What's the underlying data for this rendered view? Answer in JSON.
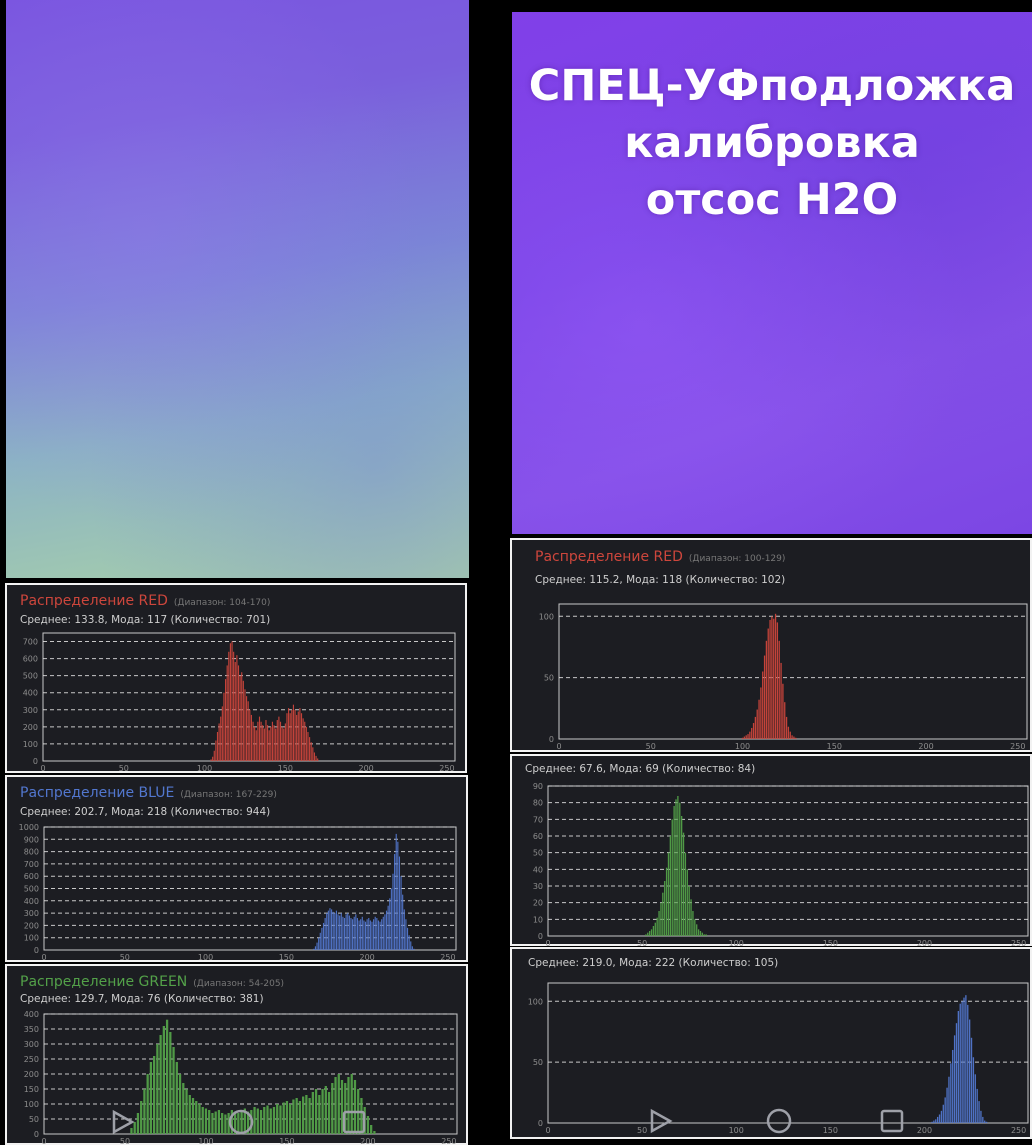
{
  "overlay_text": [
    "СПЕЦ-УФподложка",
    "калибровка",
    "отсос H2O"
  ],
  "colors": {
    "red": "#cd463c",
    "blue": "#5277cf",
    "green": "#53a149",
    "panel_bg": "#1c1d22",
    "plot_border": "#c9c9c9",
    "grid": "#e6e6e6",
    "tick_text": "#8d8d8d"
  },
  "nav_icons": [
    "back-triangle-icon",
    "home-circle-icon",
    "recents-square-icon"
  ],
  "chart_data": [
    {
      "type": "bar",
      "title": "Распределение RED",
      "range_label": "(Диапазон: 104-170)",
      "stats": "Среднее: 133.8, Мода: 117 (Количество: 701)",
      "xlim": [
        0,
        255
      ],
      "ylim": [
        0,
        750
      ],
      "xticks": [
        0,
        50,
        100,
        150,
        200,
        250
      ],
      "yticks": [
        0,
        100,
        200,
        300,
        400,
        500,
        600,
        700
      ],
      "mean_line": 133.8,
      "x": [
        104,
        105,
        106,
        107,
        108,
        109,
        110,
        111,
        112,
        113,
        114,
        115,
        116,
        117,
        118,
        119,
        120,
        121,
        122,
        123,
        124,
        125,
        126,
        127,
        128,
        129,
        130,
        131,
        132,
        133,
        134,
        135,
        136,
        137,
        138,
        139,
        140,
        141,
        142,
        143,
        144,
        145,
        146,
        147,
        148,
        149,
        150,
        151,
        152,
        153,
        154,
        155,
        156,
        157,
        158,
        159,
        160,
        161,
        162,
        163,
        164,
        165,
        166,
        167,
        168,
        169,
        170
      ],
      "values": [
        10,
        25,
        60,
        120,
        170,
        220,
        260,
        320,
        400,
        480,
        560,
        640,
        690,
        701,
        640,
        580,
        620,
        560,
        500,
        520,
        470,
        420,
        380,
        350,
        300,
        270,
        230,
        200,
        180,
        230,
        260,
        230,
        210,
        190,
        240,
        210,
        180,
        200,
        230,
        210,
        190,
        240,
        260,
        230,
        200,
        190,
        220,
        280,
        310,
        280,
        300,
        330,
        300,
        270,
        290,
        310,
        280,
        250,
        230,
        200,
        170,
        140,
        110,
        80,
        50,
        30,
        15
      ],
      "series_color": "red"
    },
    {
      "type": "bar",
      "title": "Распределение BLUE",
      "range_label": "(Диапазон: 167-229)",
      "stats": "Среднее: 202.7, Мода: 218 (Количество: 944)",
      "xlim": [
        0,
        255
      ],
      "ylim": [
        0,
        1000
      ],
      "xticks": [
        0,
        50,
        100,
        150,
        200,
        250
      ],
      "yticks": [
        0,
        100,
        200,
        300,
        400,
        500,
        600,
        700,
        800,
        900,
        1000
      ],
      "ytick_labels": [
        "0",
        "100",
        "200",
        "300",
        "400",
        "500",
        "600",
        "700",
        "800",
        "900",
        "1000"
      ],
      "x": [
        167,
        168,
        169,
        170,
        171,
        172,
        173,
        174,
        175,
        176,
        177,
        178,
        179,
        180,
        181,
        182,
        183,
        184,
        185,
        186,
        187,
        188,
        189,
        190,
        191,
        192,
        193,
        194,
        195,
        196,
        197,
        198,
        199,
        200,
        201,
        202,
        203,
        204,
        205,
        206,
        207,
        208,
        209,
        210,
        211,
        212,
        213,
        214,
        215,
        216,
        217,
        218,
        219,
        220,
        221,
        222,
        223,
        224,
        225,
        226,
        227,
        228,
        229
      ],
      "values": [
        10,
        30,
        60,
        100,
        140,
        180,
        220,
        260,
        300,
        320,
        340,
        330,
        310,
        300,
        320,
        290,
        280,
        300,
        270,
        260,
        290,
        300,
        280,
        260,
        250,
        270,
        290,
        260,
        240,
        250,
        270,
        240,
        230,
        250,
        260,
        240,
        230,
        250,
        270,
        260,
        240,
        230,
        250,
        270,
        290,
        320,
        360,
        420,
        500,
        620,
        780,
        944,
        880,
        760,
        600,
        450,
        330,
        250,
        180,
        120,
        70,
        30,
        10
      ],
      "series_color": "blue"
    },
    {
      "type": "bar",
      "title": "Распределение GREEN",
      "range_label": "(Диапазон: 54-205)",
      "stats": "Среднее: 129.7, Мода: 76 (Количество: 381)",
      "xlim": [
        0,
        255
      ],
      "ylim": [
        0,
        400
      ],
      "xticks": [
        0,
        50,
        100,
        150,
        200,
        250
      ],
      "yticks": [
        0,
        50,
        100,
        150,
        200,
        250,
        300,
        350,
        400
      ],
      "mean_line": 129.7,
      "x": [
        54,
        56,
        58,
        60,
        62,
        64,
        66,
        68,
        70,
        72,
        74,
        76,
        78,
        80,
        82,
        84,
        86,
        88,
        90,
        92,
        94,
        96,
        98,
        100,
        102,
        104,
        106,
        108,
        110,
        112,
        114,
        116,
        118,
        120,
        122,
        124,
        126,
        128,
        130,
        132,
        134,
        136,
        138,
        140,
        142,
        144,
        146,
        148,
        150,
        152,
        154,
        156,
        158,
        160,
        162,
        164,
        166,
        168,
        170,
        172,
        174,
        176,
        178,
        180,
        182,
        184,
        186,
        188,
        190,
        192,
        194,
        196,
        198,
        200,
        202,
        204
      ],
      "values": [
        20,
        40,
        70,
        110,
        150,
        200,
        240,
        260,
        300,
        330,
        360,
        381,
        340,
        290,
        240,
        200,
        170,
        150,
        130,
        120,
        110,
        100,
        90,
        85,
        80,
        70,
        75,
        80,
        70,
        65,
        70,
        80,
        75,
        70,
        80,
        85,
        75,
        80,
        90,
        85,
        80,
        90,
        95,
        85,
        90,
        100,
        95,
        105,
        110,
        100,
        115,
        120,
        110,
        125,
        130,
        120,
        140,
        150,
        130,
        150,
        160,
        140,
        170,
        190,
        200,
        180,
        170,
        190,
        200,
        180,
        150,
        120,
        90,
        60,
        30,
        10
      ],
      "series_color": "green"
    },
    {
      "type": "bar",
      "title": "Распределение RED",
      "range_label": "(Диапазон: 100-129)",
      "stats": "Среднее: 115.2, Мода: 118 (Количество: 102)",
      "xlim": [
        0,
        255
      ],
      "ylim": [
        0,
        110
      ],
      "xticks": [
        0,
        50,
        100,
        150,
        200,
        250
      ],
      "yticks": [
        0,
        50,
        100
      ],
      "x": [
        100,
        101,
        102,
        103,
        104,
        105,
        106,
        107,
        108,
        109,
        110,
        111,
        112,
        113,
        114,
        115,
        116,
        117,
        118,
        119,
        120,
        121,
        122,
        123,
        124,
        125,
        126,
        127,
        128,
        129
      ],
      "values": [
        1,
        2,
        3,
        4,
        6,
        9,
        13,
        18,
        24,
        32,
        42,
        55,
        68,
        80,
        90,
        97,
        100,
        98,
        102,
        95,
        80,
        62,
        45,
        30,
        18,
        10,
        6,
        3,
        2,
        1
      ],
      "series_color": "red"
    },
    {
      "type": "bar",
      "stats": "Среднее: 67.6, Мода: 69 (Количество: 84)",
      "xlim": [
        0,
        255
      ],
      "ylim": [
        0,
        90
      ],
      "xticks": [
        0,
        50,
        100,
        150,
        200,
        250
      ],
      "yticks": [
        0,
        10,
        20,
        30,
        40,
        50,
        60,
        70,
        80,
        90
      ],
      "mean_line": 67.6,
      "x": [
        52,
        53,
        54,
        55,
        56,
        57,
        58,
        59,
        60,
        61,
        62,
        63,
        64,
        65,
        66,
        67,
        68,
        69,
        70,
        71,
        72,
        73,
        74,
        75,
        76,
        77,
        78,
        79,
        80,
        81,
        82,
        83,
        84
      ],
      "values": [
        1,
        2,
        3,
        4,
        6,
        8,
        11,
        15,
        20,
        26,
        33,
        41,
        50,
        60,
        70,
        78,
        82,
        84,
        80,
        72,
        62,
        50,
        40,
        30,
        22,
        15,
        10,
        7,
        4,
        3,
        2,
        1,
        1
      ],
      "series_color": "green"
    },
    {
      "type": "bar",
      "stats": "Среднее: 219.0, Мода: 222 (Количество: 105)",
      "xlim": [
        0,
        255
      ],
      "ylim": [
        0,
        115
      ],
      "xticks": [
        0,
        50,
        100,
        150,
        200,
        250
      ],
      "yticks": [
        0,
        50,
        100
      ],
      "x": [
        204,
        205,
        206,
        207,
        208,
        209,
        210,
        211,
        212,
        213,
        214,
        215,
        216,
        217,
        218,
        219,
        220,
        221,
        222,
        223,
        224,
        225,
        226,
        227,
        228,
        229,
        230,
        231,
        232,
        233
      ],
      "values": [
        1,
        2,
        3,
        5,
        7,
        10,
        15,
        21,
        29,
        38,
        49,
        60,
        72,
        82,
        92,
        98,
        100,
        103,
        105,
        97,
        85,
        70,
        54,
        40,
        28,
        18,
        10,
        5,
        2,
        1
      ],
      "series_color": "blue"
    }
  ]
}
